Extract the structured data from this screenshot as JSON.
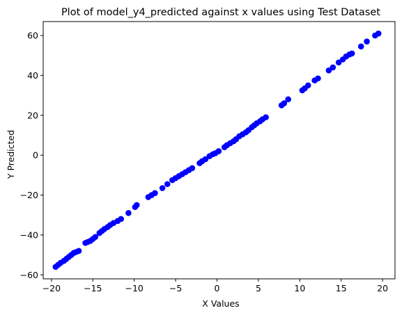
{
  "chart_data": {
    "type": "scatter",
    "title": "Plot of model_y4_predicted against x values using Test Dataset",
    "xlabel": "X Values",
    "ylabel": "Y Predicted",
    "xlim": [
      -21,
      21.5
    ],
    "ylim": [
      -62,
      67
    ],
    "xticks": [
      -20,
      -15,
      -10,
      -5,
      0,
      5,
      10,
      15,
      20
    ],
    "yticks": [
      -60,
      -40,
      -20,
      0,
      20,
      40,
      60
    ],
    "grid": false,
    "marker_color": "#0000ff",
    "x": [
      -19.5,
      -19.2,
      -18.9,
      -18.5,
      -18.2,
      -17.9,
      -17.6,
      -17.3,
      -17.0,
      -16.7,
      -15.9,
      -15.6,
      -15.3,
      -15.0,
      -14.7,
      -14.2,
      -13.9,
      -13.6,
      -13.2,
      -12.9,
      -12.5,
      -12.0,
      -11.6,
      -10.7,
      -9.9,
      -9.7,
      -8.3,
      -7.9,
      -7.5,
      -6.6,
      -6.0,
      -5.4,
      -5.0,
      -4.6,
      -4.2,
      -3.8,
      -3.4,
      -3.0,
      -2.1,
      -1.8,
      -1.4,
      -0.9,
      -0.5,
      -0.2,
      0.2,
      0.9,
      1.2,
      1.6,
      2.0,
      2.3,
      2.7,
      3.1,
      3.5,
      3.8,
      4.2,
      4.5,
      4.8,
      5.2,
      5.5,
      5.9,
      7.8,
      8.1,
      8.6,
      10.3,
      10.6,
      11.0,
      11.8,
      12.2,
      13.5,
      14.0,
      14.7,
      15.2,
      15.6,
      16.0,
      16.3,
      17.4,
      18.1,
      19.1,
      19.5
    ],
    "y": [
      -56,
      -55,
      -54,
      -53,
      -52,
      -51,
      -50,
      -49,
      -48.5,
      -48,
      -44,
      -43.5,
      -43,
      -42,
      -41,
      -39,
      -38,
      -37,
      -36,
      -35,
      -34,
      -33,
      -32,
      -29,
      -26,
      -25,
      -21,
      -20,
      -19,
      -16.5,
      -14.5,
      -12.5,
      -11.5,
      -10.5,
      -9.5,
      -8.5,
      -7.5,
      -6.5,
      -4,
      -3,
      -2,
      -0.5,
      0.5,
      1,
      2,
      4,
      5,
      6,
      7,
      8,
      9.5,
      10.5,
      11.5,
      12.5,
      14,
      15,
      16,
      17,
      18,
      19,
      25,
      26,
      28,
      32.5,
      33.5,
      35,
      37.5,
      38.5,
      42.5,
      44,
      46.5,
      48,
      49.5,
      50.5,
      51,
      54.5,
      57,
      60,
      61
    ]
  }
}
